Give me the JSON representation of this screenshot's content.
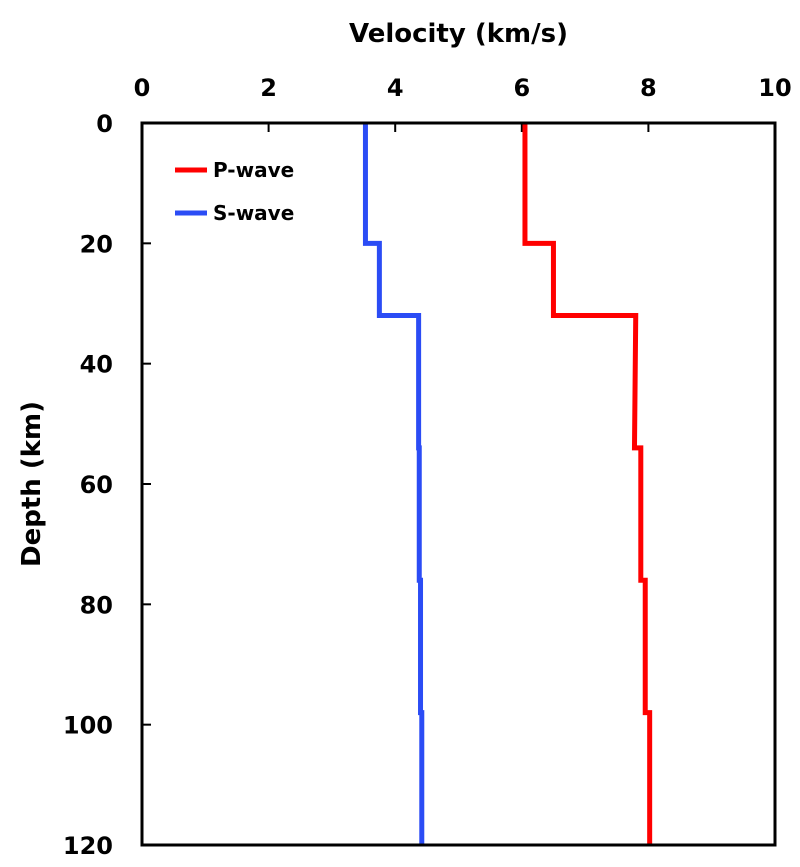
{
  "chart_data": {
    "type": "line",
    "title": "",
    "xlabel": "Velocity (km/s)",
    "ylabel": "Depth (km)",
    "xlim": [
      0,
      10
    ],
    "ylim": [
      0,
      120
    ],
    "y_inverted": true,
    "x_axis_position": "top",
    "xticks": [
      "0",
      "2",
      "4",
      "6",
      "8",
      "10"
    ],
    "yticks": [
      "0",
      "20",
      "40",
      "60",
      "80",
      "100",
      "120"
    ],
    "grid": false,
    "legend": {
      "position": "top-left",
      "entries": [
        "P-wave",
        "S-wave"
      ]
    },
    "series": [
      {
        "name": "P-wave",
        "color": "#ff0000",
        "steps": [
          {
            "depth_top": 0,
            "depth_bottom": 20,
            "velocity_top": 6.05,
            "velocity_bottom": 6.05
          },
          {
            "depth_top": 20,
            "depth_bottom": 32,
            "velocity_top": 6.5,
            "velocity_bottom": 6.5
          },
          {
            "depth_top": 32,
            "depth_bottom": 54,
            "velocity_top": 7.8,
            "velocity_bottom": 7.78
          },
          {
            "depth_top": 54,
            "depth_bottom": 76,
            "velocity_top": 7.88,
            "velocity_bottom": 7.88
          },
          {
            "depth_top": 76,
            "depth_bottom": 98,
            "velocity_top": 7.95,
            "velocity_bottom": 7.95
          },
          {
            "depth_top": 98,
            "depth_bottom": 120,
            "velocity_top": 8.02,
            "velocity_bottom": 8.02
          }
        ]
      },
      {
        "name": "S-wave",
        "color": "#2b4cf5",
        "steps": [
          {
            "depth_top": 0,
            "depth_bottom": 20,
            "velocity_top": 3.53,
            "velocity_bottom": 3.53
          },
          {
            "depth_top": 20,
            "depth_bottom": 32,
            "velocity_top": 3.75,
            "velocity_bottom": 3.75
          },
          {
            "depth_top": 32,
            "depth_bottom": 54,
            "velocity_top": 4.37,
            "velocity_bottom": 4.37
          },
          {
            "depth_top": 54,
            "depth_bottom": 76,
            "velocity_top": 4.38,
            "velocity_bottom": 4.38
          },
          {
            "depth_top": 76,
            "depth_bottom": 98,
            "velocity_top": 4.4,
            "velocity_bottom": 4.4
          },
          {
            "depth_top": 98,
            "depth_bottom": 120,
            "velocity_top": 4.42,
            "velocity_bottom": 4.42
          }
        ]
      }
    ]
  }
}
